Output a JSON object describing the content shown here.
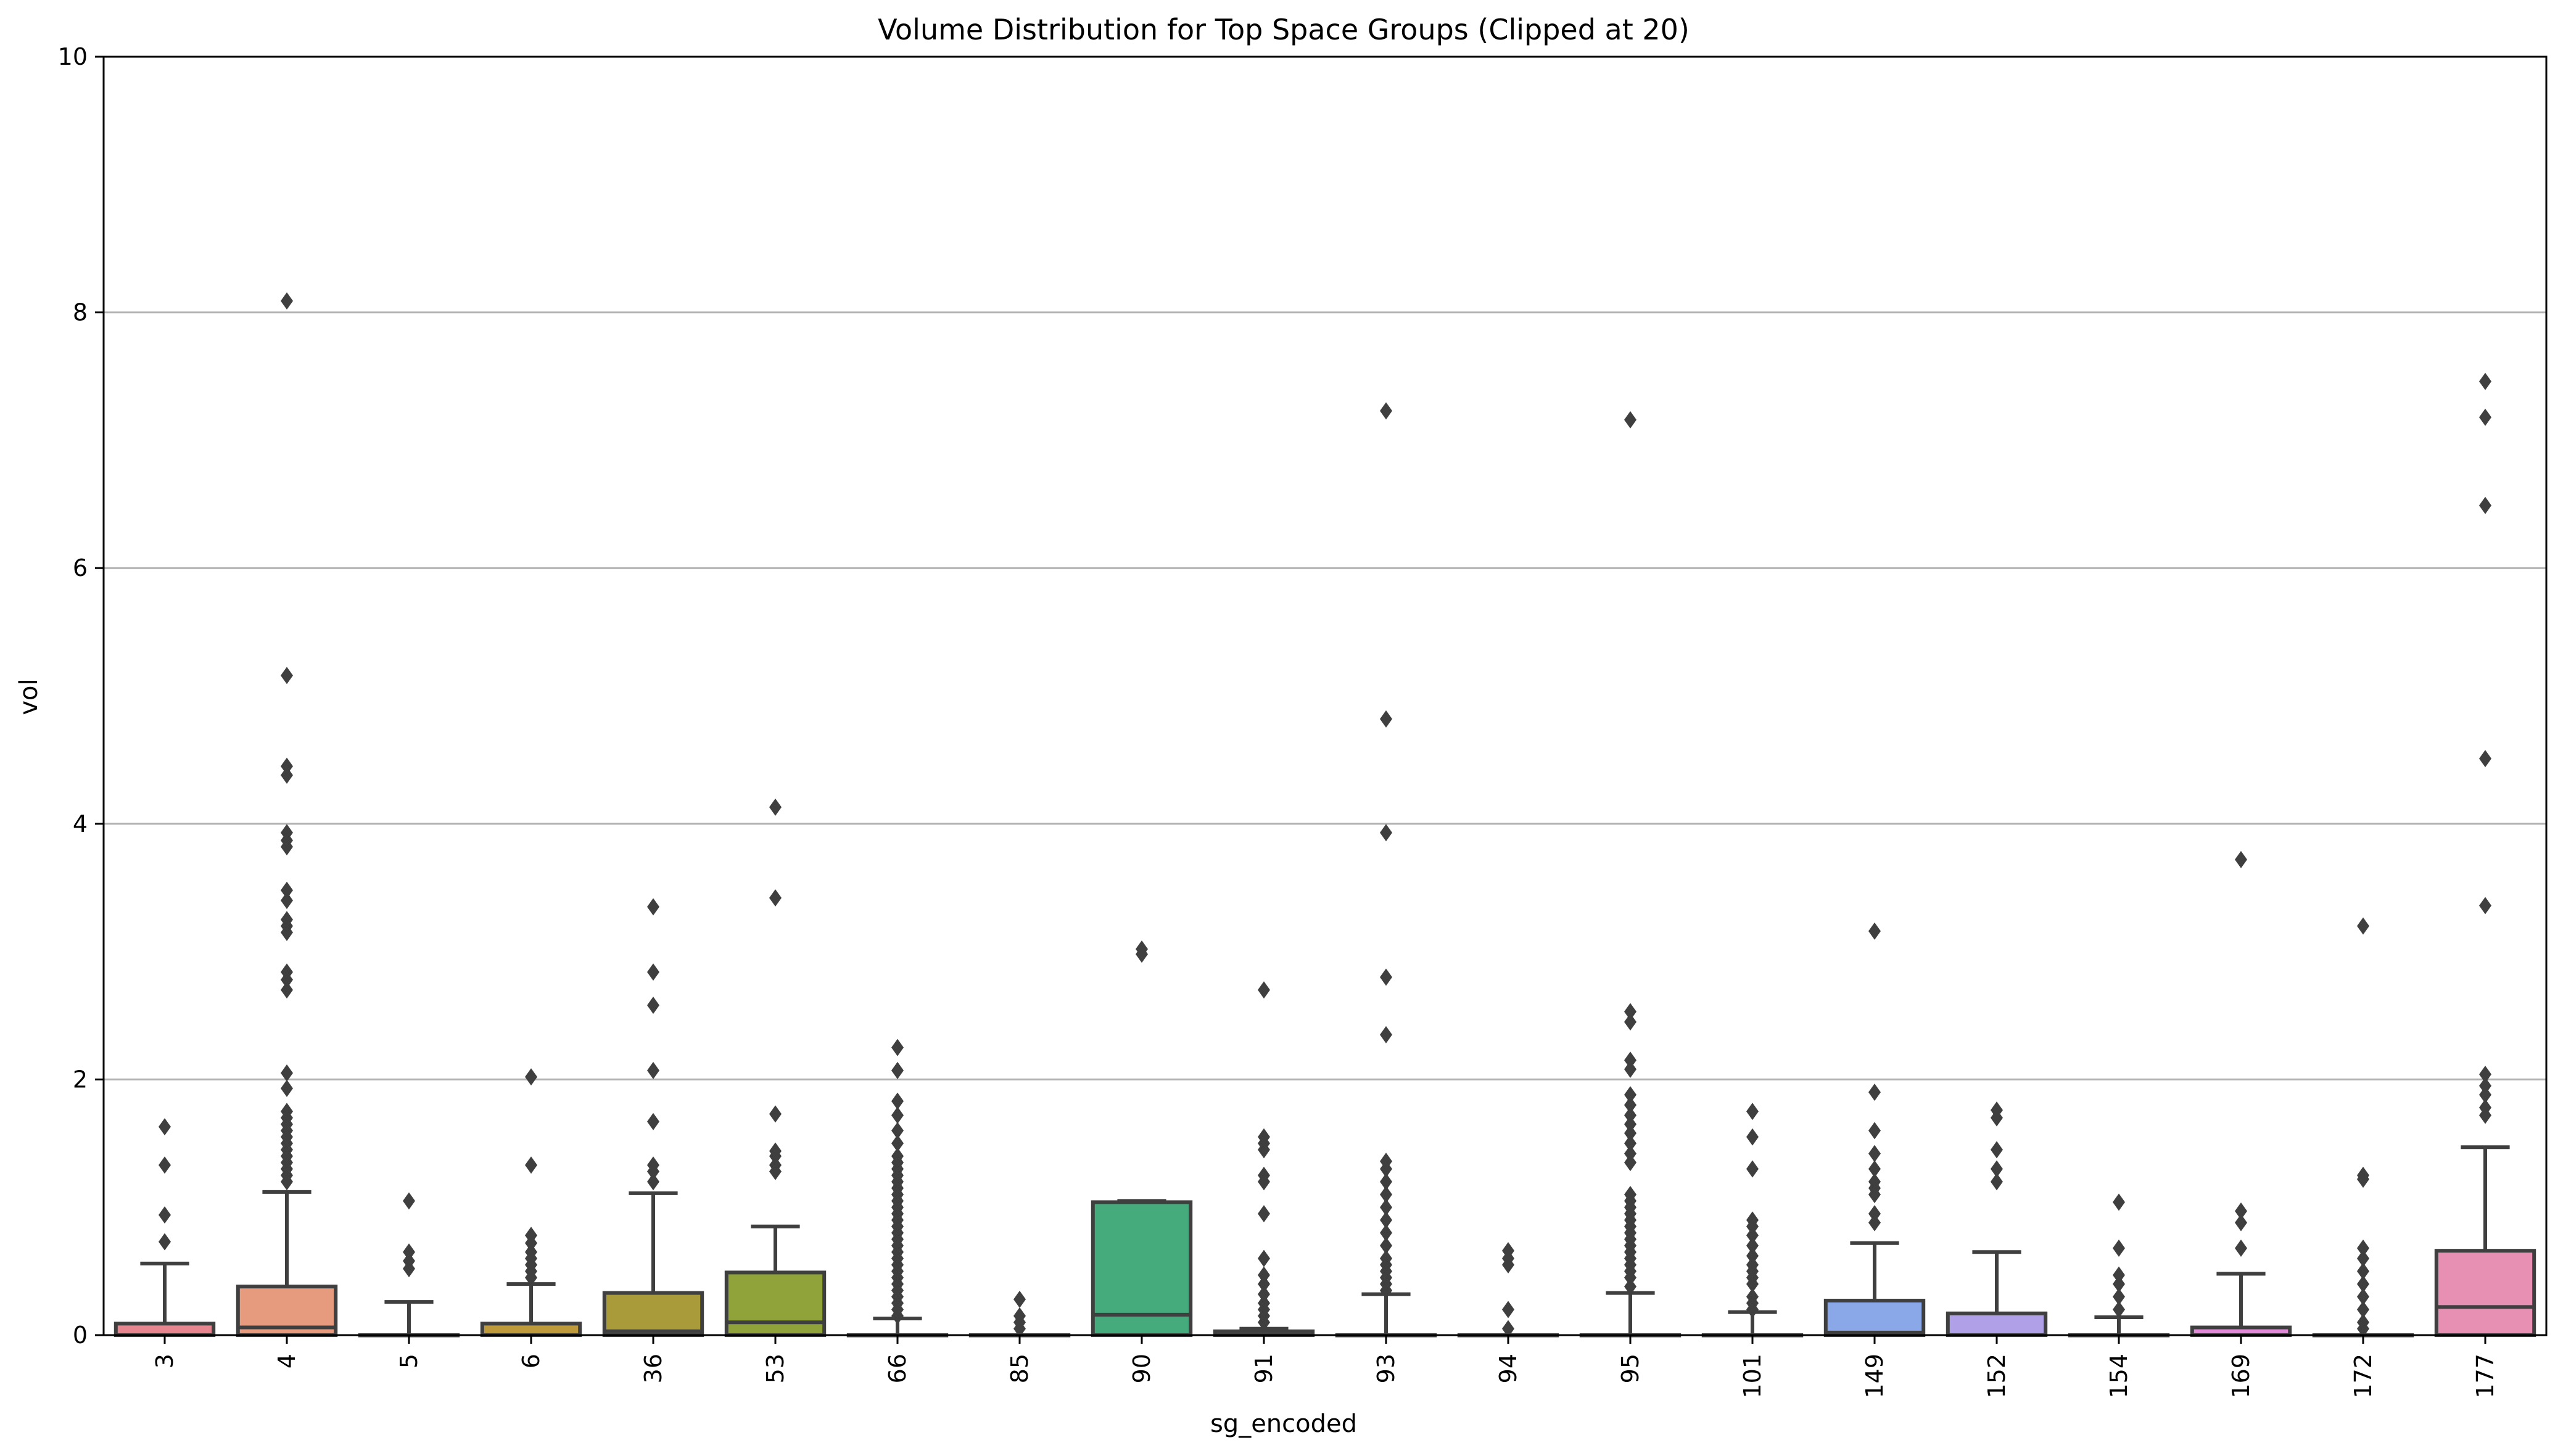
{
  "chart_data": {
    "type": "box",
    "title": "Volume Distribution for Top Space Groups (Clipped at 20)",
    "xlabel": "sg_encoded",
    "ylabel": "vol",
    "ylim": [
      0,
      10
    ],
    "yticks": [
      0,
      2,
      4,
      6,
      8,
      10
    ],
    "grid": "y",
    "categories": [
      "3",
      "4",
      "5",
      "6",
      "36",
      "53",
      "66",
      "85",
      "90",
      "91",
      "93",
      "94",
      "95",
      "101",
      "149",
      "152",
      "154",
      "169",
      "172",
      "177"
    ],
    "boxes": [
      {
        "category": "3",
        "color": "#e8868f",
        "whislo": 0,
        "q1": 0,
        "med": 0,
        "q3": 0.09,
        "whishi": 0.56,
        "fliers": [
          0.73,
          0.94,
          1.33,
          1.63
        ]
      },
      {
        "category": "4",
        "color": "#e79b7e",
        "whislo": 0,
        "q1": 0,
        "med": 0.06,
        "q3": 0.38,
        "whishi": 1.12,
        "fliers": [
          1.2,
          1.25,
          1.3,
          1.35,
          1.4,
          1.45,
          1.5,
          1.55,
          1.6,
          1.65,
          1.7,
          1.75,
          1.93,
          2.05,
          2.7,
          2.78,
          2.84,
          3.15,
          3.2,
          3.25,
          3.4,
          3.48,
          3.82,
          3.87,
          3.93,
          4.38,
          4.45,
          5.16,
          8.09
        ]
      },
      {
        "category": "5",
        "color": "#d89a4a",
        "whislo": 0,
        "q1": 0,
        "med": 0,
        "q3": 0,
        "whishi": 0.26,
        "fliers": [
          0.52,
          0.58,
          0.65,
          1.05
        ]
      },
      {
        "category": "6",
        "color": "#bf9a3a",
        "whislo": 0,
        "q1": 0,
        "med": 0,
        "q3": 0.09,
        "whishi": 0.4,
        "fliers": [
          0.45,
          0.5,
          0.55,
          0.6,
          0.65,
          0.72,
          0.78,
          1.33,
          2.02
        ]
      },
      {
        "category": "36",
        "color": "#a99b3a",
        "whislo": 0,
        "q1": 0,
        "med": 0.03,
        "q3": 0.33,
        "whishi": 1.11,
        "fliers": [
          1.2,
          1.28,
          1.33,
          1.67,
          2.07,
          2.58,
          2.84,
          3.35
        ]
      },
      {
        "category": "53",
        "color": "#8fa33a",
        "whislo": 0,
        "q1": 0,
        "med": 0.1,
        "q3": 0.49,
        "whishi": 0.85,
        "fliers": [
          1.28,
          1.33,
          1.4,
          1.44,
          1.73,
          3.42,
          4.13
        ]
      },
      {
        "category": "66",
        "color": "#5aa54b",
        "whislo": 0,
        "q1": 0,
        "med": 0,
        "q3": 0,
        "whishi": 0.13,
        "fliers": [
          0.15,
          0.2,
          0.25,
          0.3,
          0.35,
          0.4,
          0.45,
          0.5,
          0.55,
          0.6,
          0.65,
          0.7,
          0.75,
          0.8,
          0.85,
          0.9,
          0.95,
          1.0,
          1.05,
          1.1,
          1.15,
          1.2,
          1.25,
          1.3,
          1.35,
          1.4,
          1.5,
          1.6,
          1.72,
          1.83,
          2.07,
          2.25
        ]
      },
      {
        "category": "85",
        "color": "#44a36b",
        "whislo": 0,
        "q1": 0,
        "med": 0,
        "q3": 0,
        "whishi": 0,
        "fliers": [
          0.05,
          0.1,
          0.15,
          0.28
        ]
      },
      {
        "category": "90",
        "color": "#45aa7c",
        "whislo": 0,
        "q1": 0,
        "med": 0.16,
        "q3": 1.04,
        "whishi": 1.05,
        "fliers": [
          2.98,
          3.02
        ]
      },
      {
        "category": "91",
        "color": "#46a895",
        "whislo": 0,
        "q1": 0,
        "med": 0,
        "q3": 0.03,
        "whishi": 0.05,
        "fliers": [
          0.1,
          0.15,
          0.2,
          0.25,
          0.32,
          0.4,
          0.47,
          0.6,
          0.95,
          1.2,
          1.25,
          1.45,
          1.5,
          1.55,
          2.7
        ]
      },
      {
        "category": "93",
        "color": "#48a7a8",
        "whislo": 0,
        "q1": 0,
        "med": 0,
        "q3": 0,
        "whishi": 0.32,
        "fliers": [
          0.35,
          0.4,
          0.45,
          0.5,
          0.55,
          0.6,
          0.7,
          0.8,
          0.9,
          1.0,
          1.1,
          1.2,
          1.3,
          1.36,
          2.35,
          2.8,
          3.93,
          4.82,
          7.23
        ]
      },
      {
        "category": "94",
        "color": "#4aa6b8",
        "whislo": 0,
        "q1": 0,
        "med": 0,
        "q3": 0,
        "whishi": 0,
        "fliers": [
          0.05,
          0.2,
          0.55,
          0.6,
          0.66
        ]
      },
      {
        "category": "95",
        "color": "#4ea5c8",
        "whislo": 0,
        "q1": 0,
        "med": 0,
        "q3": 0,
        "whishi": 0.33,
        "fliers": [
          0.38,
          0.45,
          0.5,
          0.55,
          0.6,
          0.65,
          0.7,
          0.75,
          0.8,
          0.85,
          0.9,
          0.95,
          1.0,
          1.05,
          1.1,
          1.35,
          1.42,
          1.5,
          1.58,
          1.65,
          1.72,
          1.8,
          1.88,
          2.08,
          2.15,
          2.45,
          2.53,
          7.16
        ]
      },
      {
        "category": "101",
        "color": "#5aa0d8",
        "whislo": 0,
        "q1": 0,
        "med": 0,
        "q3": 0,
        "whishi": 0.18,
        "fliers": [
          0.2,
          0.25,
          0.3,
          0.4,
          0.45,
          0.5,
          0.55,
          0.62,
          0.7,
          0.78,
          0.85,
          0.9,
          1.3,
          1.55,
          1.75
        ]
      },
      {
        "category": "149",
        "color": "#8aa8e8",
        "whislo": 0,
        "q1": 0,
        "med": 0.02,
        "q3": 0.27,
        "whishi": 0.72,
        "fliers": [
          0.88,
          0.95,
          1.1,
          1.15,
          1.2,
          1.3,
          1.42,
          1.6,
          1.9,
          3.16
        ]
      },
      {
        "category": "152",
        "color": "#b0a0e8",
        "whislo": 0,
        "q1": 0,
        "med": 0,
        "q3": 0.17,
        "whishi": 0.65,
        "fliers": [
          1.2,
          1.3,
          1.45,
          1.7,
          1.76
        ]
      },
      {
        "category": "154",
        "color": "#c896e0",
        "whislo": 0,
        "q1": 0,
        "med": 0,
        "q3": 0,
        "whishi": 0.14,
        "fliers": [
          0.2,
          0.3,
          0.4,
          0.47,
          0.68,
          1.04
        ]
      },
      {
        "category": "169",
        "color": "#e08ad8",
        "whislo": 0,
        "q1": 0,
        "med": 0,
        "q3": 0.06,
        "whishi": 0.48,
        "fliers": [
          0.68,
          0.88,
          0.97,
          3.72
        ]
      },
      {
        "category": "172",
        "color": "#e88cc4",
        "whislo": 0,
        "q1": 0,
        "med": 0,
        "q3": 0,
        "whishi": 0,
        "fliers": [
          0.05,
          0.1,
          0.2,
          0.3,
          0.4,
          0.5,
          0.6,
          0.68,
          1.22,
          1.25,
          3.2
        ]
      },
      {
        "category": "177",
        "color": "#e890b4",
        "whislo": 0,
        "q1": 0,
        "med": 0.22,
        "q3": 0.66,
        "whishi": 1.47,
        "fliers": [
          1.72,
          1.78,
          1.88,
          1.95,
          2.04,
          3.36,
          4.51,
          6.49,
          7.18,
          7.46
        ]
      }
    ]
  }
}
